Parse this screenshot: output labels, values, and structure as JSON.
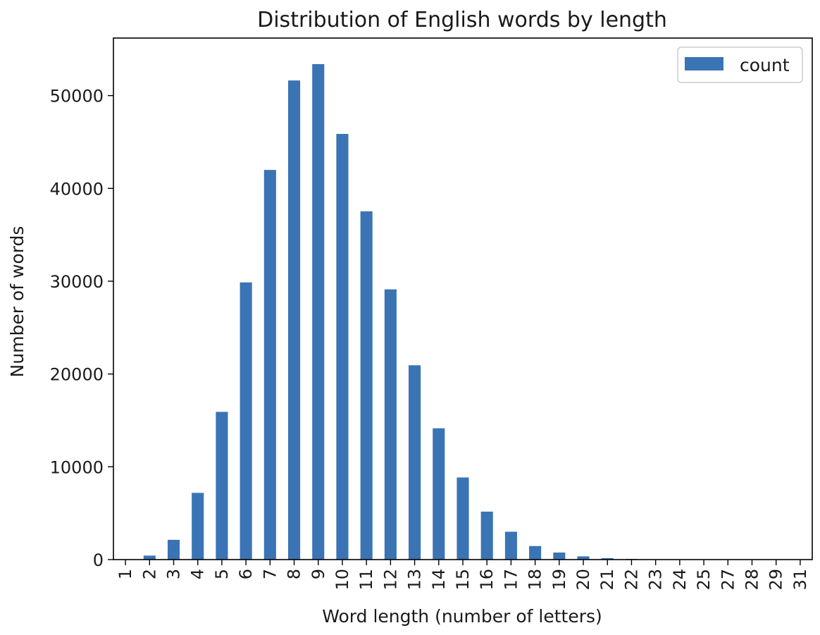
{
  "chart_data": {
    "type": "bar",
    "title": "Distribution of English words by length",
    "xlabel": "Word length (number of letters)",
    "ylabel": "Number of words",
    "categories": [
      "1",
      "2",
      "3",
      "4",
      "5",
      "6",
      "7",
      "8",
      "9",
      "10",
      "11",
      "12",
      "13",
      "14",
      "15",
      "16",
      "17",
      "18",
      "19",
      "20",
      "21",
      "22",
      "23",
      "24",
      "25",
      "27",
      "28",
      "29",
      "31"
    ],
    "series": [
      {
        "name": "count",
        "color": "#3a74b4",
        "values": [
          26,
          430,
          2130,
          7190,
          15920,
          29870,
          41990,
          51630,
          53390,
          45870,
          37530,
          29120,
          20940,
          14150,
          8850,
          5170,
          3000,
          1460,
          760,
          350,
          160,
          75,
          40,
          20,
          8,
          3,
          2,
          1,
          1
        ]
      }
    ],
    "ylim": [
      0,
      56200
    ],
    "yticks": [
      0,
      10000,
      20000,
      30000,
      40000,
      50000
    ],
    "legend_position": "top-right",
    "grid": false
  }
}
